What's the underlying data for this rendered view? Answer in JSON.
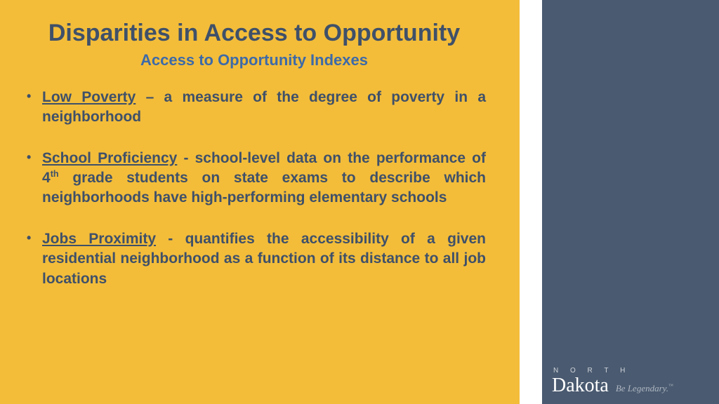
{
  "colors": {
    "left_bg": "#f3bd3a",
    "right_bg": "#4a5a70",
    "title": "#3f5069",
    "subtitle": "#3d6aa8",
    "body": "#3f5069"
  },
  "title": "Disparities in Access to Opportunity",
  "subtitle": "Access to Opportunity Indexes",
  "bullets": [
    {
      "term": "Low Poverty",
      "sep": " – ",
      "rest": "a measure of the degree of poverty in a neighborhood"
    },
    {
      "term": "School Proficiency",
      "sep": " - ",
      "rest_html": "school-level data on the performance of 4<sup>th</sup> grade students on state exams to describe which neighborhoods have high-performing elementary schools"
    },
    {
      "term": "Jobs Proximity",
      "sep": " - ",
      "rest": "quantifies the accessibility of a given residential neighborhood as a function of its distance to all job locations"
    }
  ],
  "logo": {
    "north": "N O R T H",
    "dakota": "Dakota",
    "tagline": "Be Legendary.",
    "tm": "™"
  }
}
